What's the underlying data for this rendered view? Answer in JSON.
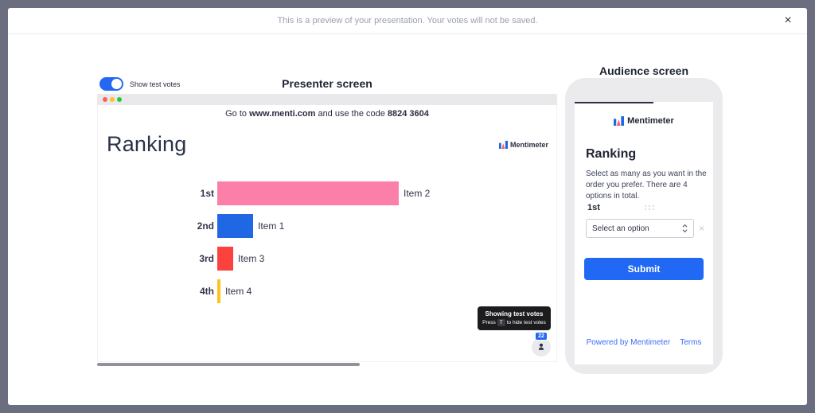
{
  "window": {
    "preview_message": "This is a preview of your presentation. Your votes will not be saved.",
    "close_icon": "×"
  },
  "presenter": {
    "show_test_votes_label": "Show test votes",
    "screen_title": "Presenter screen",
    "join_instruction": {
      "prefix": "Go to ",
      "url": "www.menti.com",
      "middle": " and use the code ",
      "code": "8824 3604"
    },
    "slide_title": "Ranking",
    "logo_text": "Mentimeter",
    "tooltip": {
      "title": "Showing test votes",
      "press": "Press",
      "key": "T",
      "suffix": "to hide test votes"
    },
    "participants_count": "22",
    "chart_data": {
      "type": "bar",
      "orientation": "horizontal",
      "title": "Ranking",
      "categories": [
        "1st",
        "2nd",
        "3rd",
        "4th"
      ],
      "labels": [
        "Item 2",
        "Item 1",
        "Item 3",
        "Item 4"
      ],
      "values_pct_of_max": [
        100,
        19.7,
        8.8,
        1.8
      ],
      "colors": [
        "#FB7FA8",
        "#2068E3",
        "#FB423C",
        "#FFC31D"
      ]
    }
  },
  "audience": {
    "screen_title": "Audience screen",
    "logo_text": "Mentimeter",
    "question_title": "Ranking",
    "description": "Select as many as you want in the order you prefer. There are 4 options in total.",
    "rank_label": "1st",
    "dropdown_value": "Select an option",
    "dropdown_clear_icon": "×",
    "submit_label": "Submit",
    "footer": {
      "powered_by": "Powered by Mentimeter",
      "terms": "Terms"
    }
  },
  "colors": {
    "accent_blue": "#2168F5",
    "backdrop": "#6A6E7E",
    "tooltip_bg": "#1C1C1E",
    "traffic_red": "#FF5F57",
    "traffic_yellow": "#FFBD2E",
    "traffic_green": "#24C73F"
  }
}
